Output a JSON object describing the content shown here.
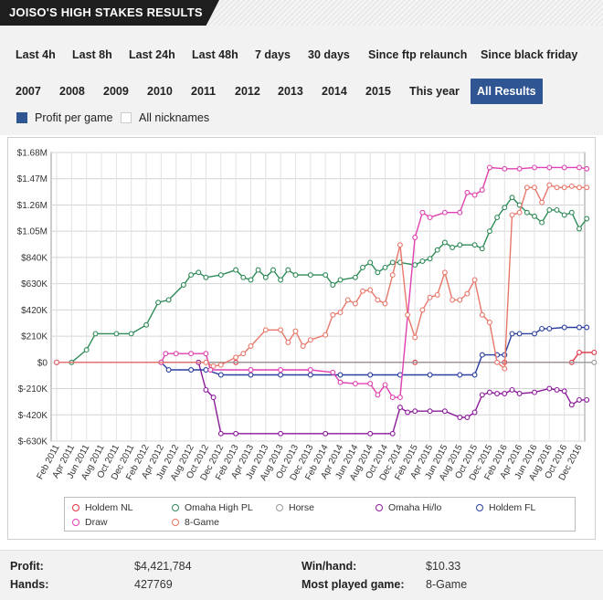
{
  "header": {
    "title": "JOISO'S HIGH STAKES RESULTS"
  },
  "filters": {
    "row1": [
      "Last 4h",
      "Last 8h",
      "Last 24h",
      "Last 48h",
      "7 days",
      "30 days",
      "Since ftp relaunch",
      "Since black friday"
    ],
    "row2": [
      "2007",
      "2008",
      "2009",
      "2010",
      "2011",
      "2012",
      "2013",
      "2014",
      "2015",
      "This year",
      "All Results"
    ],
    "active": "All Results"
  },
  "toggles": {
    "profit_per_game": "Profit per game",
    "all_nicknames": "All nicknames"
  },
  "colors": {
    "accent": "#2f5592",
    "holdem_nl": "#dd3344",
    "omaha_high_pl": "#2e8b57",
    "horse": "#999999",
    "omaha_hilo": "#8b1a9a",
    "holdem_fl": "#2a3f9e",
    "draw": "#e040b0",
    "eight_game": "#e8776a"
  },
  "chart_data": {
    "type": "line",
    "x": [
      "Feb 2011",
      "Apr 2011",
      "Jun 2011",
      "Aug 2011",
      "Oct 2011",
      "Dec 2011",
      "Feb 2012",
      "Apr 2012",
      "Jun 2012",
      "Aug 2012",
      "Oct 2012",
      "Dec 2012",
      "Feb 2013",
      "Apr 2013",
      "Jun 2013",
      "Aug 2013",
      "Oct 2013",
      "Dec 2013",
      "Feb 2014",
      "Apr 2014",
      "Jun 2014",
      "Aug 2014",
      "Oct 2014",
      "Dec 2014",
      "Feb 2015",
      "Apr 2015",
      "Jun 2015",
      "Aug 2015",
      "Oct 2015",
      "Dec 2015",
      "Feb 2016",
      "Apr 2016",
      "Jun 2016",
      "Aug 2016",
      "Oct 2016",
      "Dec 2016"
    ],
    "y_ticks": [
      "$1.68M",
      "$1.47M",
      "$1.26M",
      "$1.05M",
      "$840K",
      "$630K",
      "$420K",
      "$210K",
      "$0",
      "$-210K",
      "$-420K",
      "$-630K"
    ],
    "ylim": [
      -630000,
      1680000
    ],
    "grid": true,
    "series": [
      {
        "name": "Holdem NL",
        "key": "holdem_nl",
        "values": [
          [
            0,
            0
          ],
          [
            12,
            0
          ],
          [
            24,
            0
          ],
          [
            30,
            0
          ],
          [
            34.5,
            0
          ],
          [
            35,
            80000
          ],
          [
            36,
            80000
          ]
        ]
      },
      {
        "name": "Omaha High PL",
        "key": "omaha_high_pl",
        "values": [
          [
            0,
            0
          ],
          [
            1,
            0
          ],
          [
            2,
            100000
          ],
          [
            2.6,
            230000
          ],
          [
            4,
            230000
          ],
          [
            5,
            230000
          ],
          [
            6,
            300000
          ],
          [
            6.8,
            480000
          ],
          [
            7.5,
            500000
          ],
          [
            8.5,
            620000
          ],
          [
            9,
            700000
          ],
          [
            9.5,
            720000
          ],
          [
            10,
            680000
          ],
          [
            11,
            700000
          ],
          [
            12,
            740000
          ],
          [
            12.5,
            680000
          ],
          [
            13,
            660000
          ],
          [
            13.5,
            740000
          ],
          [
            14,
            680000
          ],
          [
            14.5,
            740000
          ],
          [
            15,
            660000
          ],
          [
            15.5,
            740000
          ],
          [
            16,
            700000
          ],
          [
            17,
            700000
          ],
          [
            18,
            700000
          ],
          [
            18.5,
            620000
          ],
          [
            19,
            660000
          ],
          [
            20,
            680000
          ],
          [
            20.5,
            760000
          ],
          [
            21,
            800000
          ],
          [
            21.5,
            720000
          ],
          [
            22,
            760000
          ],
          [
            22.5,
            800000
          ],
          [
            23,
            800000
          ],
          [
            24,
            780000
          ],
          [
            24.5,
            810000
          ],
          [
            25,
            830000
          ],
          [
            25.5,
            900000
          ],
          [
            26,
            960000
          ],
          [
            26.5,
            920000
          ],
          [
            27,
            940000
          ],
          [
            28,
            940000
          ],
          [
            28.5,
            910000
          ],
          [
            29,
            1050000
          ],
          [
            29.5,
            1160000
          ],
          [
            30,
            1240000
          ],
          [
            30.5,
            1320000
          ],
          [
            31,
            1260000
          ],
          [
            31.5,
            1200000
          ],
          [
            32,
            1170000
          ],
          [
            32.5,
            1120000
          ],
          [
            33,
            1220000
          ],
          [
            33.5,
            1220000
          ],
          [
            34,
            1180000
          ],
          [
            34.5,
            1200000
          ],
          [
            35,
            1070000
          ],
          [
            35.5,
            1150000
          ]
        ]
      },
      {
        "name": "Horse",
        "key": "horse",
        "values": [
          [
            0,
            0
          ],
          [
            36,
            0
          ]
        ]
      },
      {
        "name": "Omaha Hi/lo",
        "key": "omaha_hilo",
        "values": [
          [
            0,
            0
          ],
          [
            9.5,
            0
          ],
          [
            10,
            -220000
          ],
          [
            10.5,
            -280000
          ],
          [
            11,
            -570000
          ],
          [
            12,
            -570000
          ],
          [
            15,
            -570000
          ],
          [
            18,
            -570000
          ],
          [
            21,
            -570000
          ],
          [
            22.5,
            -570000
          ],
          [
            23,
            -360000
          ],
          [
            23.5,
            -400000
          ],
          [
            24,
            -390000
          ],
          [
            25,
            -390000
          ],
          [
            26,
            -390000
          ],
          [
            27,
            -440000
          ],
          [
            27.5,
            -440000
          ],
          [
            28,
            -400000
          ],
          [
            28.5,
            -260000
          ],
          [
            29,
            -240000
          ],
          [
            29.5,
            -250000
          ],
          [
            30,
            -250000
          ],
          [
            30.5,
            -220000
          ],
          [
            31,
            -250000
          ],
          [
            32,
            -240000
          ],
          [
            33,
            -210000
          ],
          [
            33.5,
            -220000
          ],
          [
            34,
            -230000
          ],
          [
            34.5,
            -340000
          ],
          [
            35,
            -300000
          ],
          [
            35.5,
            -300000
          ]
        ]
      },
      {
        "name": "Holdem FL",
        "key": "holdem_fl",
        "values": [
          [
            0,
            0
          ],
          [
            7,
            0
          ],
          [
            7.5,
            -60000
          ],
          [
            9,
            -60000
          ],
          [
            10,
            -60000
          ],
          [
            11,
            -100000
          ],
          [
            13,
            -100000
          ],
          [
            15,
            -100000
          ],
          [
            17,
            -100000
          ],
          [
            19,
            -100000
          ],
          [
            21,
            -100000
          ],
          [
            23,
            -100000
          ],
          [
            25,
            -100000
          ],
          [
            27,
            -100000
          ],
          [
            28,
            -100000
          ],
          [
            28.5,
            60000
          ],
          [
            29.5,
            60000
          ],
          [
            30,
            60000
          ],
          [
            30.5,
            230000
          ],
          [
            31,
            230000
          ],
          [
            32,
            230000
          ],
          [
            32.5,
            270000
          ],
          [
            33,
            270000
          ],
          [
            34,
            280000
          ],
          [
            35,
            280000
          ],
          [
            35.5,
            280000
          ]
        ]
      },
      {
        "name": "Draw",
        "key": "draw",
        "values": [
          [
            0,
            0
          ],
          [
            7,
            0
          ],
          [
            7.3,
            70000
          ],
          [
            8,
            70000
          ],
          [
            9,
            70000
          ],
          [
            10,
            70000
          ],
          [
            10.3,
            -60000
          ],
          [
            13,
            -60000
          ],
          [
            15,
            -60000
          ],
          [
            17,
            -60000
          ],
          [
            18.5,
            -80000
          ],
          [
            19,
            -160000
          ],
          [
            20,
            -170000
          ],
          [
            21,
            -170000
          ],
          [
            21.5,
            -260000
          ],
          [
            22,
            -180000
          ],
          [
            22.5,
            -280000
          ],
          [
            23,
            -280000
          ],
          [
            24,
            1000000
          ],
          [
            24.5,
            1200000
          ],
          [
            25,
            1160000
          ],
          [
            26,
            1200000
          ],
          [
            27,
            1200000
          ],
          [
            27.5,
            1360000
          ],
          [
            28,
            1340000
          ],
          [
            28.5,
            1380000
          ],
          [
            29,
            1560000
          ],
          [
            30,
            1550000
          ],
          [
            31,
            1550000
          ],
          [
            32,
            1560000
          ],
          [
            33,
            1560000
          ],
          [
            34,
            1560000
          ],
          [
            35,
            1560000
          ],
          [
            35.5,
            1550000
          ]
        ]
      },
      {
        "name": "8-Game",
        "key": "eight_game",
        "values": [
          [
            0,
            0
          ],
          [
            10,
            0
          ],
          [
            10.5,
            -30000
          ],
          [
            11,
            -20000
          ],
          [
            12,
            40000
          ],
          [
            12.5,
            70000
          ],
          [
            13,
            130000
          ],
          [
            14,
            260000
          ],
          [
            15,
            260000
          ],
          [
            15.5,
            160000
          ],
          [
            16,
            250000
          ],
          [
            16.5,
            130000
          ],
          [
            17,
            180000
          ],
          [
            18,
            220000
          ],
          [
            18.5,
            380000
          ],
          [
            19,
            400000
          ],
          [
            19.5,
            500000
          ],
          [
            20,
            470000
          ],
          [
            20.5,
            570000
          ],
          [
            21,
            580000
          ],
          [
            21.5,
            500000
          ],
          [
            22,
            470000
          ],
          [
            22.5,
            700000
          ],
          [
            23,
            940000
          ],
          [
            23.5,
            380000
          ],
          [
            24,
            200000
          ],
          [
            24.5,
            420000
          ],
          [
            25,
            520000
          ],
          [
            25.5,
            540000
          ],
          [
            26,
            720000
          ],
          [
            26.5,
            500000
          ],
          [
            27,
            500000
          ],
          [
            27.5,
            550000
          ],
          [
            28,
            660000
          ],
          [
            28.5,
            380000
          ],
          [
            29,
            320000
          ],
          [
            29.5,
            0
          ],
          [
            30,
            -50000
          ],
          [
            30.5,
            1180000
          ],
          [
            31,
            1200000
          ],
          [
            31.5,
            1400000
          ],
          [
            32,
            1400000
          ],
          [
            32.5,
            1280000
          ],
          [
            33,
            1420000
          ],
          [
            33.5,
            1400000
          ],
          [
            34,
            1400000
          ],
          [
            34.5,
            1410000
          ],
          [
            35,
            1400000
          ],
          [
            35.5,
            1400000
          ]
        ]
      }
    ]
  },
  "stats": {
    "profit_label": "Profit:",
    "profit_value": "$4,421,784",
    "hands_label": "Hands:",
    "hands_value": "427769",
    "winhand_label": "Win/hand:",
    "winhand_value": "$10.33",
    "most_played_label": "Most played game:",
    "most_played_value": "8-Game"
  }
}
